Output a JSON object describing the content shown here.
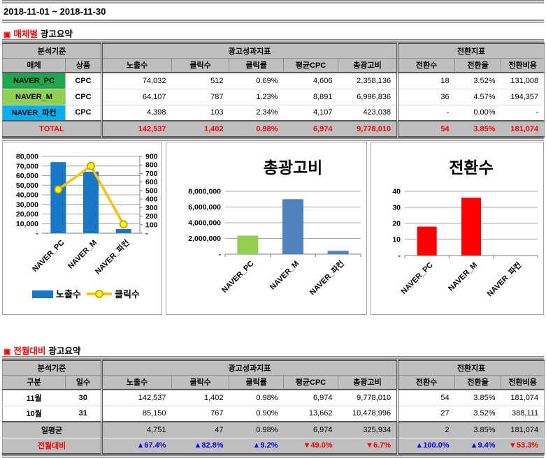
{
  "page": {
    "date_range": "2018-11-01 ~ 2018-11-30"
  },
  "colors": {
    "accent_red": "#FF0000",
    "up_blue": "#0000FF",
    "header_gray": "#BFBFBF"
  },
  "section1": {
    "marker": "▣",
    "title_accent": "매체별",
    "title_rest": "광고요약",
    "table": {
      "groups": {
        "criteria": "분석기준",
        "performance": "광고성과지표",
        "conversion": "전환지표"
      },
      "columns": [
        "매체",
        "상품",
        "노출수",
        "클릭수",
        "클릭률",
        "평균CPC",
        "총광고비",
        "전환수",
        "전환율",
        "전환비용"
      ],
      "rows": [
        {
          "media": "NAVER_PC",
          "media_color": "#1FA750",
          "product": "CPC",
          "imp": "74,032",
          "clk": "512",
          "ctr": "0.69%",
          "cpc": "4,606",
          "cost": "2,358,136",
          "conv": "18",
          "cvr": "3.52%",
          "cpa": "131,008"
        },
        {
          "media": "NAVER_M",
          "media_color": "#92D050",
          "product": "CPC",
          "imp": "64,107",
          "clk": "787",
          "ctr": "1.23%",
          "cpc": "8,891",
          "cost": "6,996,836",
          "conv": "36",
          "cvr": "4.57%",
          "cpa": "194,357"
        },
        {
          "media": "NAVER_파컨",
          "media_color": "#00B0F0",
          "product": "CPC",
          "imp": "4,398",
          "clk": "103",
          "ctr": "2.34%",
          "cpc": "4,107",
          "cost": "423,038",
          "conv": "-",
          "cvr": "0.00%",
          "cpa": "-"
        }
      ],
      "total": {
        "label": "TOTAL",
        "imp": "142,537",
        "clk": "1,402",
        "ctr": "0.98%",
        "cpc": "6,974",
        "cost": "9,778,010",
        "conv": "54",
        "cvr": "3.85%",
        "cpa": "181,074"
      }
    }
  },
  "chart_data": [
    {
      "type": "bar-line",
      "categories": [
        "NAVER_PC",
        "NAVER_M",
        "NAVER_파컨"
      ],
      "series": [
        {
          "name": "노출수",
          "chart": "bar",
          "axis": "left",
          "values": [
            74032,
            64107,
            4398
          ],
          "color": "#1878C8"
        },
        {
          "name": "클릭수",
          "chart": "line",
          "axis": "right",
          "values": [
            512,
            787,
            103
          ],
          "color": "#FFC000",
          "marker_fill": "#FFFF00",
          "marker_stroke": "#D29B00"
        }
      ],
      "left_axis": {
        "max": 80000,
        "labels": [
          "80,000",
          "70,000",
          "60,000",
          "50,000",
          "40,000",
          "30,000",
          "20,000",
          "10,000",
          "-"
        ]
      },
      "right_axis": {
        "max": 900,
        "labels": [
          "900",
          "800",
          "700",
          "600",
          "500",
          "400",
          "300",
          "200",
          "100",
          "-"
        ]
      },
      "legend": [
        "노출수",
        "클릭수"
      ],
      "legend_position": "bottom"
    },
    {
      "type": "bar",
      "title": "총광고비",
      "categories": [
        "NAVER_PC",
        "NAVER_M",
        "NAVER_파컨"
      ],
      "values": [
        2358136,
        6996836,
        423038
      ],
      "bar_colors": [
        "#92D050",
        "#4F81BD",
        "#4F81BD"
      ],
      "axis": {
        "max": 8000000,
        "labels": [
          "8,000,000",
          "6,000,000",
          "4,000,000",
          "2,000,000",
          "-"
        ]
      }
    },
    {
      "type": "bar",
      "title": "전환수",
      "categories": [
        "NAVER_PC",
        "NAVER_M",
        "NAVER_파컨"
      ],
      "values": [
        18,
        36,
        0
      ],
      "bar_colors": [
        "#FF0000",
        "#FF0000",
        "#FF0000"
      ],
      "axis": {
        "max": 40,
        "labels": [
          "40",
          "30",
          "20",
          "10",
          "-"
        ]
      }
    }
  ],
  "section2": {
    "marker": "▣",
    "title_accent": "전월대비",
    "title_rest": "광고요약",
    "table": {
      "groups": {
        "criteria": "분석기준",
        "performance": "광고성과지표",
        "conversion": "전환지표"
      },
      "columns": [
        "구분",
        "일수",
        "노출수",
        "클릭수",
        "클릭률",
        "평균CPC",
        "총광고비",
        "전환수",
        "전환율",
        "전환비용"
      ],
      "rows": [
        {
          "label": "11월",
          "days": "30",
          "imp": "142,537",
          "clk": "1,402",
          "ctr": "0.98%",
          "cpc": "6,974",
          "cost": "9,778,010",
          "conv": "54",
          "cvr": "3.85%",
          "cpa": "181,074"
        },
        {
          "label": "10월",
          "days": "31",
          "imp": "85,150",
          "clk": "767",
          "ctr": "0.90%",
          "cpc": "13,662",
          "cost": "10,478,996",
          "conv": "27",
          "cvr": "3.52%",
          "cpa": "388,111"
        }
      ],
      "daily_avg": {
        "label": "일평균",
        "imp": "4,751",
        "clk": "47",
        "ctr": "0.98%",
        "cpc": "6,974",
        "cost": "325,934",
        "conv": "2",
        "cvr": "3.85%",
        "cpa": "181,074"
      },
      "mom": {
        "label": "전월대비",
        "cells": [
          {
            "text": "▲67.4%",
            "color": "#0000FF"
          },
          {
            "text": "▲82.8%",
            "color": "#0000FF"
          },
          {
            "text": "▲9.2%",
            "color": "#0000FF"
          },
          {
            "text": "▼49.0%",
            "color": "#FF0000"
          },
          {
            "text": "▼6.7%",
            "color": "#FF0000"
          },
          {
            "text": "▲100.0%",
            "color": "#0000FF"
          },
          {
            "text": "▲9.4%",
            "color": "#0000FF"
          },
          {
            "text": "▼53.3%",
            "color": "#FF0000"
          }
        ]
      }
    }
  }
}
